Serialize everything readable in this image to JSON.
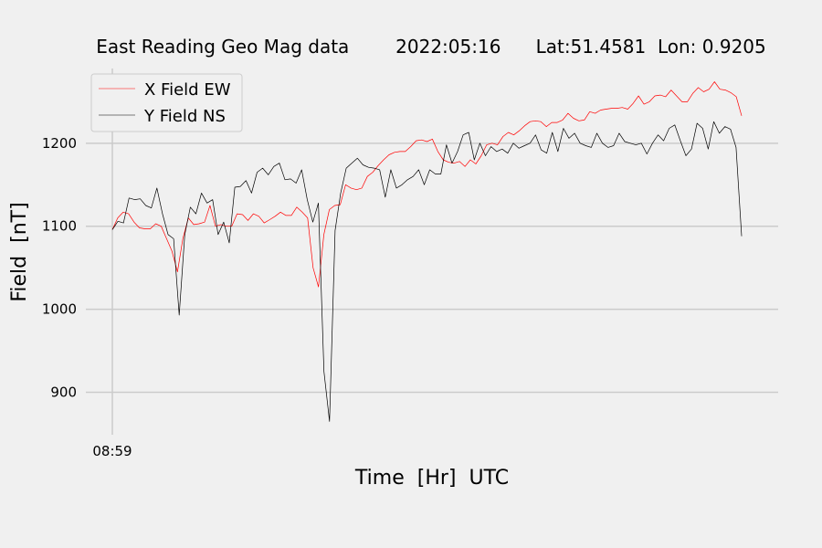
{
  "chart_data": {
    "type": "line",
    "title": "East Reading Geo Mag data        2022:05:16      Lat:51.4581  Lon: 0.9205",
    "xlabel": "Time  [Hr]  UTC",
    "ylabel": "Field  [nT]",
    "x_tick_labels": [
      "08:59"
    ],
    "y_tick_labels": [
      "900",
      "1000",
      "1100",
      "1200"
    ],
    "y_ticks": [
      900,
      1000,
      1100,
      1200
    ],
    "ylim": [
      850,
      1290
    ],
    "grid": true,
    "legend_position": "top-left",
    "x_index_range": [
      0,
      150
    ],
    "series": [
      {
        "name": "X Field EW",
        "color": "#ff0000",
        "values": [
          1096,
          1110,
          1117,
          1115,
          1105,
          1098,
          1097,
          1097,
          1103,
          1100,
          1085,
          1070,
          1045,
          1085,
          1110,
          1102,
          1103,
          1105,
          1125,
          1100,
          1102,
          1100,
          1100,
          1115,
          1114,
          1107,
          1115,
          1112,
          1104,
          1108,
          1112,
          1117,
          1113,
          1113,
          1123,
          1117,
          1110,
          1050,
          1027,
          1090,
          1120,
          1125,
          1126,
          1150,
          1146,
          1144,
          1146,
          1160,
          1165,
          1173,
          1180,
          1186,
          1189,
          1190,
          1190,
          1196,
          1203,
          1204,
          1202,
          1205,
          1190,
          1180,
          1177,
          1176,
          1178,
          1172,
          1180,
          1175,
          1185,
          1198,
          1200,
          1198,
          1208,
          1213,
          1210,
          1215,
          1221,
          1226,
          1227,
          1226,
          1220,
          1225,
          1225,
          1228,
          1236,
          1230,
          1227,
          1228,
          1238,
          1236,
          1240,
          1241,
          1242,
          1242,
          1243,
          1241,
          1248,
          1257,
          1247,
          1250,
          1257,
          1258,
          1256,
          1264,
          1257,
          1250,
          1250,
          1260,
          1267,
          1262,
          1265,
          1274,
          1265,
          1264,
          1261,
          1256,
          1233
        ]
      },
      {
        "name": "Y Field NS",
        "color": "#000000",
        "values": [
          1096,
          1106,
          1104,
          1134,
          1132,
          1133,
          1125,
          1122,
          1146,
          1115,
          1090,
          1085,
          993,
          1090,
          1123,
          1115,
          1140,
          1128,
          1132,
          1090,
          1105,
          1080,
          1147,
          1148,
          1155,
          1140,
          1165,
          1170,
          1162,
          1172,
          1176,
          1156,
          1157,
          1152,
          1168,
          1132,
          1105,
          1128,
          925,
          865,
          1095,
          1140,
          1170,
          1176,
          1182,
          1174,
          1171,
          1170,
          1168,
          1135,
          1168,
          1146,
          1150,
          1156,
          1160,
          1168,
          1150,
          1168,
          1163,
          1163,
          1198,
          1176,
          1190,
          1210,
          1213,
          1180,
          1200,
          1185,
          1196,
          1190,
          1193,
          1188,
          1200,
          1194,
          1197,
          1200,
          1210,
          1192,
          1188,
          1213,
          1190,
          1218,
          1206,
          1212,
          1200,
          1197,
          1195,
          1212,
          1200,
          1195,
          1197,
          1212,
          1202,
          1200,
          1198,
          1200,
          1187,
          1200,
          1210,
          1203,
          1218,
          1222,
          1203,
          1185,
          1193,
          1224,
          1218,
          1193,
          1226,
          1212,
          1220,
          1217,
          1195,
          1088
        ]
      }
    ]
  }
}
